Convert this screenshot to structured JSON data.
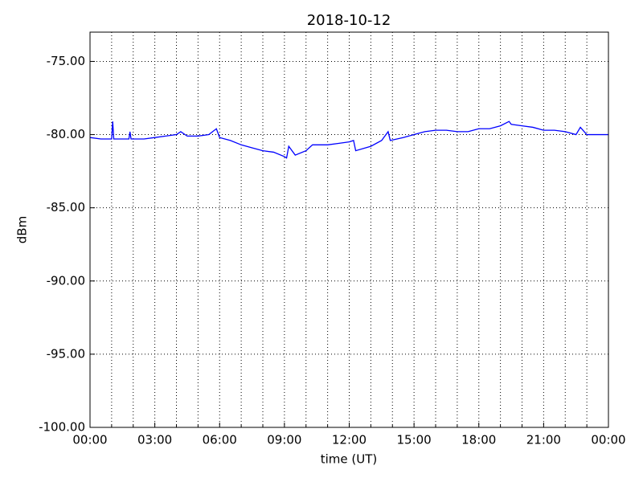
{
  "chart_data": {
    "type": "line",
    "title": "2018-10-12",
    "xlabel": "time (UT)",
    "ylabel": "dBm",
    "xlim": [
      0,
      24
    ],
    "ylim": [
      -100,
      -73
    ],
    "xticks": [
      {
        "value": 0,
        "label": "00:00"
      },
      {
        "value": 3,
        "label": "03:00"
      },
      {
        "value": 6,
        "label": "06:00"
      },
      {
        "value": 9,
        "label": "09:00"
      },
      {
        "value": 12,
        "label": "12:00"
      },
      {
        "value": 15,
        "label": "15:00"
      },
      {
        "value": 18,
        "label": "18:00"
      },
      {
        "value": 21,
        "label": "21:00"
      },
      {
        "value": 24,
        "label": "00:00"
      }
    ],
    "xminorticks": [
      1,
      2,
      4,
      5,
      7,
      8,
      10,
      11,
      13,
      14,
      16,
      17,
      19,
      20,
      22,
      23
    ],
    "yticks": [
      {
        "value": -100,
        "label": "-100.00"
      },
      {
        "value": -95,
        "label": "-95.00"
      },
      {
        "value": -90,
        "label": "-90.00"
      },
      {
        "value": -85,
        "label": "-85.00"
      },
      {
        "value": -80,
        "label": "-80.00"
      },
      {
        "value": -75,
        "label": "-75.00"
      }
    ],
    "grid": true,
    "series": [
      {
        "color": "#0000ff",
        "x": [
          0,
          0.5,
          1.0,
          1.05,
          1.1,
          1.5,
          1.8,
          1.85,
          1.9,
          2.5,
          3,
          3.5,
          4,
          4.2,
          4.5,
          5,
          5.5,
          5.85,
          6,
          6.5,
          7,
          7.5,
          8,
          8.5,
          9,
          9.1,
          9.2,
          9.5,
          10,
          10.3,
          11,
          11.5,
          12,
          12.2,
          12.3,
          13,
          13.5,
          13.8,
          13.9,
          14.5,
          15,
          15.5,
          16,
          16.5,
          17,
          17.5,
          18,
          18.5,
          19,
          19.4,
          19.5,
          20,
          20.5,
          21,
          21.5,
          22,
          22.5,
          22.7,
          23,
          23.5,
          24
        ],
        "values": [
          -80.2,
          -80.3,
          -80.3,
          -79.1,
          -80.3,
          -80.3,
          -80.3,
          -79.8,
          -80.3,
          -80.3,
          -80.2,
          -80.1,
          -80.0,
          -79.8,
          -80.1,
          -80.1,
          -80.0,
          -79.6,
          -80.2,
          -80.4,
          -80.7,
          -80.9,
          -81.1,
          -81.2,
          -81.5,
          -81.6,
          -80.8,
          -81.4,
          -81.1,
          -80.7,
          -80.7,
          -80.6,
          -80.5,
          -80.4,
          -81.1,
          -80.8,
          -80.4,
          -79.8,
          -80.4,
          -80.2,
          -80.0,
          -79.8,
          -79.7,
          -79.7,
          -79.8,
          -79.8,
          -79.6,
          -79.6,
          -79.4,
          -79.1,
          -79.3,
          -79.4,
          -79.5,
          -79.7,
          -79.7,
          -79.8,
          -80.0,
          -79.5,
          -80.0,
          -80.0,
          -80.0
        ]
      }
    ]
  }
}
